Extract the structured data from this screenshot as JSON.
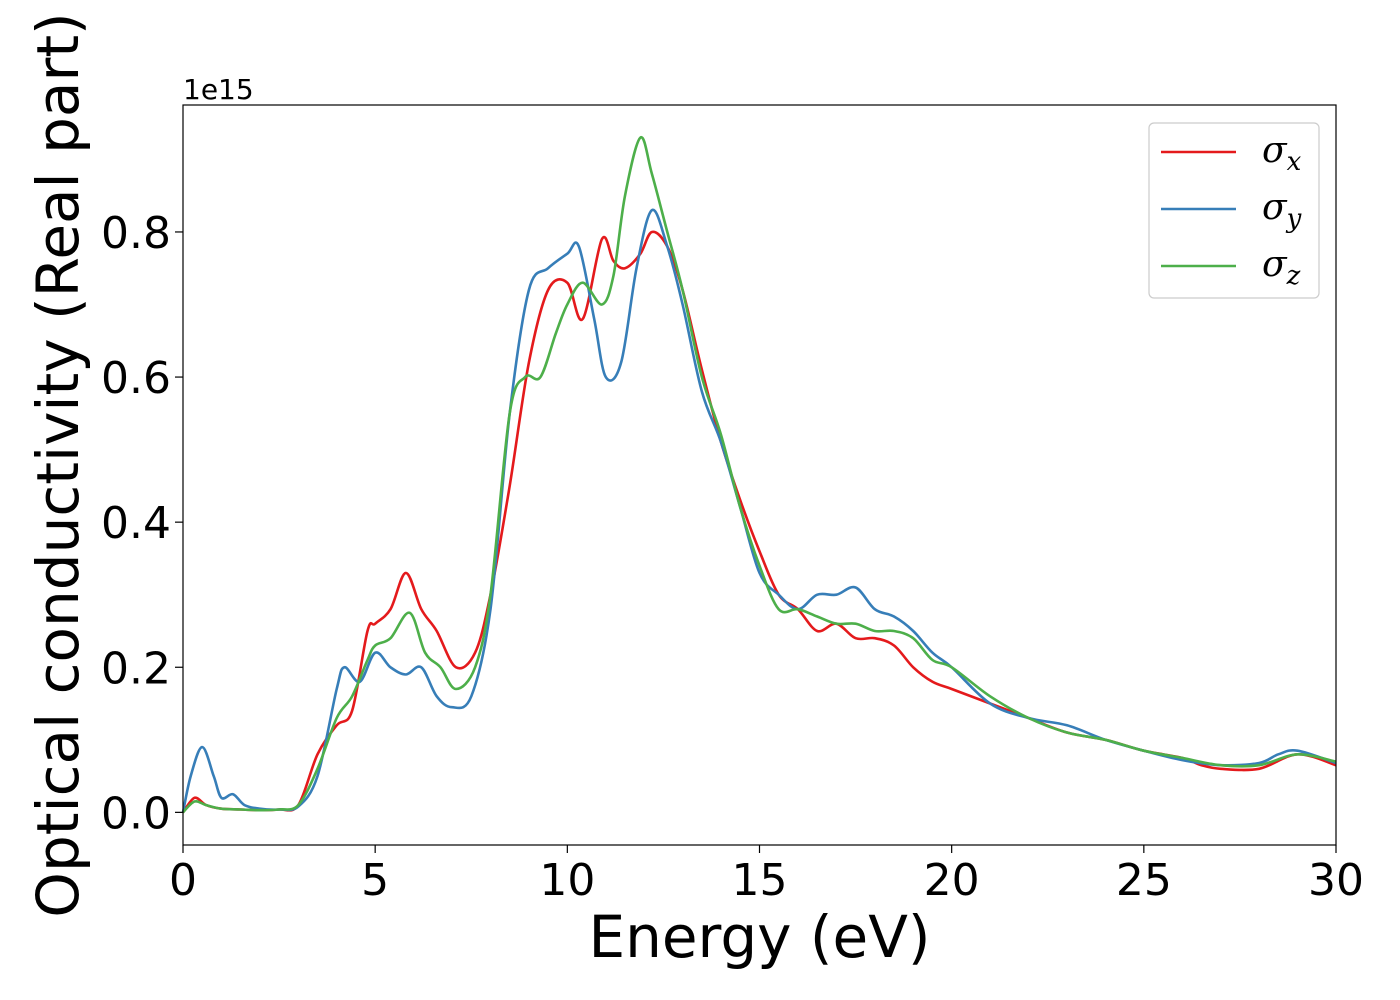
{
  "chart_data": {
    "type": "line",
    "xlabel": "Energy (eV)",
    "ylabel": "Optical conductivity (Real part)",
    "y_offset_label": "1e15",
    "xlim": [
      0,
      30
    ],
    "ylim": [
      -0.045,
      0.975
    ],
    "x_ticks": [
      0,
      5,
      10,
      15,
      20,
      25,
      30
    ],
    "x_tick_labels": [
      "0",
      "5",
      "10",
      "15",
      "20",
      "25",
      "30"
    ],
    "y_ticks": [
      0.0,
      0.2,
      0.4,
      0.6,
      0.8
    ],
    "y_tick_labels": [
      "0.0",
      "0.2",
      "0.4",
      "0.6",
      "0.8"
    ],
    "grid": false,
    "legend_position": "top-right",
    "series": [
      {
        "name": "σx",
        "symbol": "σ",
        "subscript": "x",
        "color": "#e41a1c",
        "x": [
          0,
          0.3,
          0.6,
          1,
          1.5,
          2,
          2.5,
          3,
          3.5,
          4,
          4.4,
          4.8,
          5,
          5.4,
          5.8,
          6.2,
          6.6,
          7.1,
          7.6,
          8,
          8.5,
          9,
          9.5,
          10,
          10.4,
          10.9,
          11.2,
          11.5,
          11.9,
          12.2,
          12.6,
          13,
          13.5,
          14,
          14.5,
          15,
          15.5,
          16,
          16.5,
          17,
          17.5,
          18,
          18.5,
          19,
          19.5,
          20,
          21,
          22,
          23,
          24,
          25,
          26,
          26.5,
          27,
          28,
          29,
          30
        ],
        "y": [
          0,
          0.02,
          0.01,
          0.005,
          0.004,
          0.003,
          0.004,
          0.01,
          0.08,
          0.12,
          0.14,
          0.25,
          0.26,
          0.28,
          0.33,
          0.28,
          0.25,
          0.2,
          0.22,
          0.3,
          0.45,
          0.62,
          0.72,
          0.73,
          0.68,
          0.79,
          0.76,
          0.75,
          0.77,
          0.8,
          0.78,
          0.72,
          0.61,
          0.51,
          0.43,
          0.36,
          0.3,
          0.28,
          0.25,
          0.26,
          0.24,
          0.24,
          0.23,
          0.2,
          0.18,
          0.17,
          0.15,
          0.13,
          0.11,
          0.1,
          0.085,
          0.075,
          0.065,
          0.06,
          0.06,
          0.08,
          0.065
        ]
      },
      {
        "name": "σy",
        "symbol": "σ",
        "subscript": "y",
        "color": "#377eb8",
        "x": [
          0,
          0.2,
          0.5,
          0.8,
          1,
          1.3,
          1.6,
          2,
          2.5,
          3,
          3.5,
          4,
          4.2,
          4.6,
          5,
          5.4,
          5.8,
          6.2,
          6.6,
          7,
          7.5,
          8,
          8.5,
          9,
          9.5,
          10,
          10.3,
          10.7,
          11,
          11.4,
          11.8,
          12.2,
          12.6,
          13,
          13.5,
          14,
          14.5,
          15,
          15.5,
          16,
          16.5,
          17,
          17.5,
          18,
          18.5,
          19,
          19.5,
          20,
          21,
          22,
          23,
          24,
          25,
          26,
          27,
          28,
          28.5,
          29,
          30
        ],
        "y": [
          0,
          0.05,
          0.09,
          0.05,
          0.02,
          0.025,
          0.01,
          0.005,
          0.004,
          0.008,
          0.05,
          0.17,
          0.2,
          0.18,
          0.22,
          0.2,
          0.19,
          0.2,
          0.16,
          0.145,
          0.16,
          0.28,
          0.55,
          0.72,
          0.75,
          0.77,
          0.78,
          0.68,
          0.6,
          0.62,
          0.75,
          0.83,
          0.78,
          0.7,
          0.58,
          0.51,
          0.42,
          0.33,
          0.3,
          0.28,
          0.3,
          0.3,
          0.31,
          0.28,
          0.27,
          0.25,
          0.22,
          0.2,
          0.15,
          0.13,
          0.12,
          0.1,
          0.085,
          0.072,
          0.065,
          0.068,
          0.08,
          0.085,
          0.068
        ]
      },
      {
        "name": "σz",
        "symbol": "σ",
        "subscript": "z",
        "color": "#4daf4a",
        "x": [
          0,
          0.3,
          0.6,
          1,
          1.5,
          2,
          2.5,
          3,
          3.5,
          4,
          4.4,
          4.8,
          5,
          5.4,
          5.9,
          6.3,
          6.7,
          7.1,
          7.6,
          8,
          8.5,
          8.9,
          9.3,
          9.7,
          10,
          10.4,
          10.9,
          11.2,
          11.5,
          11.9,
          12.2,
          12.6,
          13,
          13.5,
          14,
          14.5,
          15,
          15.5,
          16,
          16.5,
          17,
          17.5,
          18,
          18.5,
          19,
          19.5,
          20,
          21,
          22,
          23,
          24,
          25,
          26,
          27,
          28,
          29,
          30
        ],
        "y": [
          0,
          0.015,
          0.01,
          0.005,
          0.004,
          0.003,
          0.004,
          0.01,
          0.06,
          0.13,
          0.16,
          0.21,
          0.23,
          0.24,
          0.275,
          0.22,
          0.2,
          0.17,
          0.2,
          0.3,
          0.55,
          0.6,
          0.6,
          0.66,
          0.7,
          0.73,
          0.7,
          0.74,
          0.85,
          0.93,
          0.88,
          0.8,
          0.72,
          0.6,
          0.52,
          0.42,
          0.34,
          0.28,
          0.28,
          0.27,
          0.26,
          0.26,
          0.25,
          0.25,
          0.24,
          0.21,
          0.2,
          0.16,
          0.13,
          0.11,
          0.1,
          0.085,
          0.075,
          0.065,
          0.065,
          0.08,
          0.07
        ]
      }
    ]
  }
}
